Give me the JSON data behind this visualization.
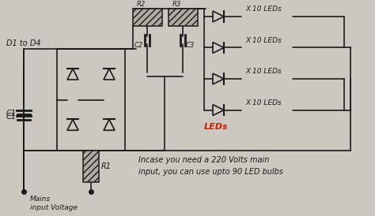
{
  "bg_color": "#ccc8c0",
  "line_color": "#1a1a1a",
  "red_color": "#cc2200",
  "note_line1": "Incase you need a 220 Volts main",
  "note_line2": "input, you can use upto 90 LED bulbs",
  "label_d1d4": "D1 to D4",
  "label_c1": "C1",
  "label_c2": "C2",
  "label_c3": "C3",
  "label_r1": "R1",
  "label_r2": "R2",
  "label_r3": "R3",
  "label_leds": "LEDs",
  "label_mains": "Mains\ninput Voltage",
  "led_labels": [
    "X 10 LEDs",
    "X 10 LEDs",
    "X 10 LEDs",
    "X 10 LEDs"
  ]
}
